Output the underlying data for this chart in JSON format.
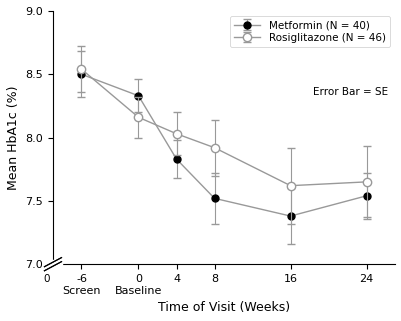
{
  "xlabel": "Time of Visit (Weeks)",
  "ylabel": "Mean HbA1c (%)",
  "x_values": [
    -6,
    0,
    4,
    8,
    16,
    24
  ],
  "metformin_y": [
    8.5,
    8.33,
    7.83,
    7.52,
    7.38,
    7.54
  ],
  "metformin_err": [
    0.18,
    0.13,
    0.15,
    0.2,
    0.22,
    0.18
  ],
  "rosiglitazone_y": [
    8.54,
    8.16,
    8.03,
    7.92,
    7.62,
    7.65
  ],
  "rosiglitazone_err": [
    0.18,
    0.16,
    0.17,
    0.22,
    0.3,
    0.28
  ],
  "ylim_bottom": 7.0,
  "ylim_top": 9.0,
  "yticks": [
    7.0,
    7.5,
    8.0,
    8.5,
    9.0
  ],
  "xlim_left": -9,
  "xlim_right": 27,
  "line_color": "#999999",
  "legend_labels": [
    "Metformin (N = 40)",
    "Rosiglitazone (N = 46)"
  ],
  "legend_note": "Error Bar = SE",
  "capsize": 3,
  "markersize": 5
}
